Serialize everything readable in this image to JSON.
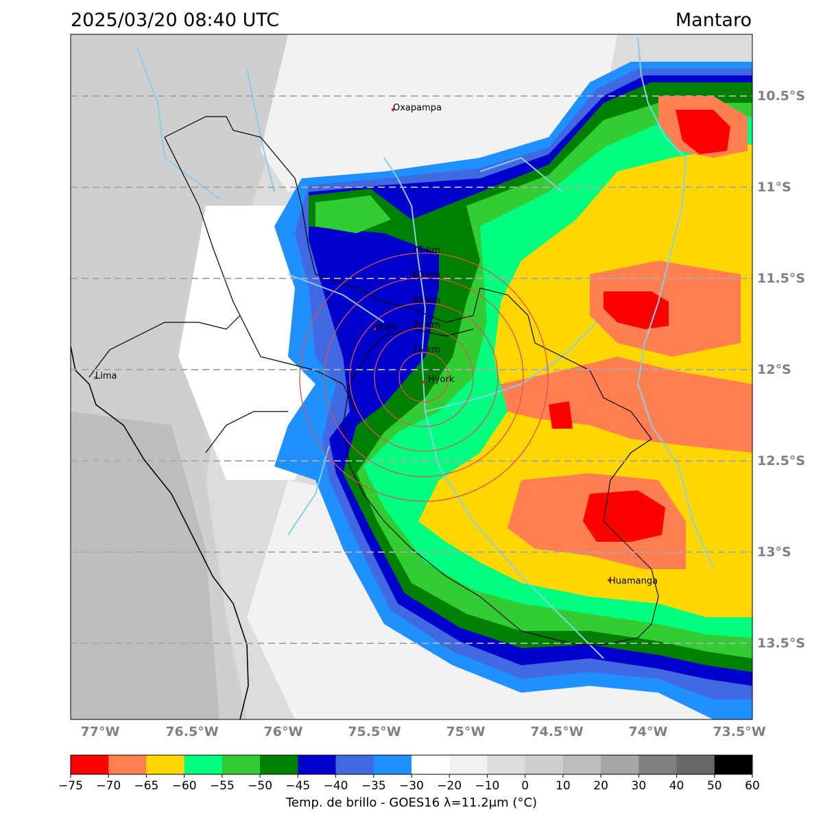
{
  "header": {
    "datetime": "2025/03/20 08:40 UTC",
    "region": "Mantaro"
  },
  "map": {
    "lat_labels": [
      "10.5°S",
      "11°S",
      "11.5°S",
      "12°S",
      "12.5°S",
      "13°S",
      "13.5°S"
    ],
    "lon_labels": [
      "77°W",
      "76.5°W",
      "76°W",
      "75.5°W",
      "75°W",
      "74.5°W",
      "74°W",
      "73.5°W"
    ],
    "places": [
      {
        "name": "Oxapampa",
        "color": "#d62728"
      },
      {
        "name": "Jauja",
        "color": "#d62728"
      },
      {
        "name": "Hyork",
        "color": "#d62728"
      },
      {
        "name": "Lima",
        "color": "#2ca02c"
      },
      {
        "name": "Huamanga",
        "color": "#d62728"
      }
    ],
    "rings": [
      "15 km",
      "30 km",
      "45 km",
      "60 km",
      "75 km"
    ]
  },
  "colorbar": {
    "label": "Temp. de brillo - GOES16 λ=11.2μm (°C)",
    "ticks": [
      "−75",
      "−70",
      "−65",
      "−60",
      "−55",
      "−50",
      "−45",
      "−40",
      "−35",
      "−30",
      "−20",
      "−10",
      "0",
      "10",
      "20",
      "30",
      "40",
      "50",
      "60"
    ],
    "colors": [
      "#ff0000",
      "#ff7f50",
      "#ffd700",
      "#00ff7f",
      "#32cd32",
      "#008000",
      "#0000cd",
      "#4169e1",
      "#1e90ff",
      "#ffffff",
      "#f2f2f2",
      "#dcdcdc",
      "#cfcfcf",
      "#bdbdbd",
      "#a6a6a6",
      "#808080",
      "#696969",
      "#000000"
    ]
  }
}
